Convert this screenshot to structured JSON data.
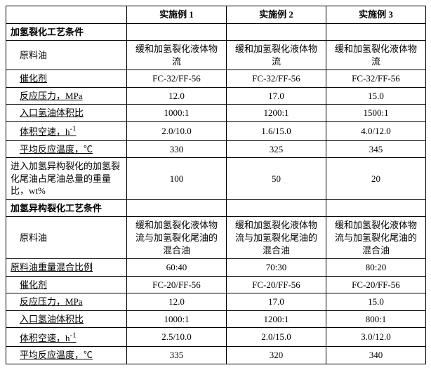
{
  "colors": {
    "background": "#ffffff",
    "border": "#000000",
    "text": "#000000"
  },
  "typography": {
    "font_family": "SimSun",
    "font_size_pt": 10
  },
  "columns": {
    "col1_header": "",
    "col2_header": "实施例 1",
    "col3_header": "实施例 2",
    "col4_header": "实施例 3"
  },
  "section1": {
    "title": "加氢裂化工艺条件"
  },
  "rows1": {
    "feed_oil": {
      "label": "原料油",
      "v1": "缓和加氢裂化液体物流",
      "v2": "缓和加氢裂化液体物流",
      "v3": "缓和加氢裂化液体物流"
    },
    "catalyst": {
      "label": "催化剂",
      "v1": "FC-32/FF-56",
      "v2": "FC-32/FF-56",
      "v3": "FC-32/FF-56"
    },
    "pressure": {
      "label": "反应压力，MPa",
      "v1": "12.0",
      "v2": "17.0",
      "v3": "15.0"
    },
    "h2_ratio": {
      "label": "入口氢油体积比",
      "v1": "1000:1",
      "v2": "1200:1",
      "v3": "1500:1"
    },
    "space_vel": {
      "label_pre": "体积空速，h",
      "label_sup": "-1",
      "v1": "2.0/10.0",
      "v2": "1.6/15.0",
      "v3": "4.0/12.0"
    },
    "avg_temp": {
      "label": "平均反应温度，℃",
      "v1": "330",
      "v2": "325",
      "v3": "345"
    },
    "tail_oil_ratio": {
      "label": "进入加氢异构裂化的加氢裂化尾油占尾油总量的重量比，wt%",
      "v1": "100",
      "v2": "50",
      "v3": "20"
    }
  },
  "section2": {
    "title": "加氢异构裂化工艺条件"
  },
  "rows2": {
    "feed_oil": {
      "label": "原料油",
      "v1": "缓和加氢裂化液体物流与加氢裂化尾油的混合油",
      "v2": "缓和加氢裂化液体物流与加氢裂化尾油的混合油",
      "v3": "缓和加氢裂化液体物流与加氢裂化尾油的混合油"
    },
    "mix_ratio": {
      "label": "原料油重量混合比例",
      "v1": "60:40",
      "v2": "70:30",
      "v3": "80:20"
    },
    "catalyst": {
      "label": "催化剂",
      "v1": "FC-20/FF-56",
      "v2": "FC-20/FF-56",
      "v3": "FC-20/FF-56"
    },
    "pressure": {
      "label": "反应压力，MPa",
      "v1": "12.0",
      "v2": "17.0",
      "v3": "15.0"
    },
    "h2_ratio": {
      "label": "入口氢油体积比",
      "v1": "1000:1",
      "v2": "1200:1",
      "v3": "800:1"
    },
    "space_vel": {
      "label_pre": "体积空速，h",
      "label_sup": "-1",
      "v1": "2.5/10.0",
      "v2": "2.0/15.0",
      "v3": "3.0/12.0"
    },
    "avg_temp": {
      "label": "平均反应温度，℃",
      "v1": "335",
      "v2": "320",
      "v3": "340"
    }
  }
}
